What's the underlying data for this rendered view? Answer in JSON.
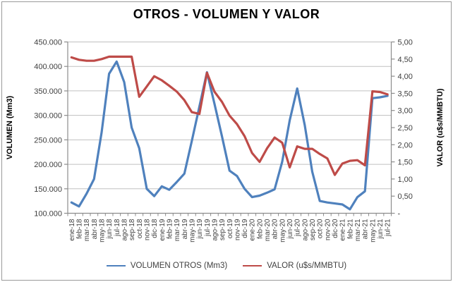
{
  "chart": {
    "title": "OTROS - VOLUMEN Y VALOR",
    "left_axis_title": "VOLUMEN (Mm3)",
    "right_axis_title": "VALOR (u$s/MMBTU)",
    "legend": [
      {
        "label": "VOLUMEN OTROS (Mm3)",
        "color": "#4F81BD"
      },
      {
        "label": "VALOR (u$s/MMBTU)",
        "color": "#BE4B48"
      }
    ]
  },
  "colors": {
    "volumen_line": "#4F81BD",
    "valor_line": "#BE4B48",
    "gridline": "#C0C0C0",
    "axis_line": "#8C8C8C",
    "tick_text": "#3F3F3F"
  },
  "chart_data": {
    "type": "line",
    "title": "OTROS - VOLUMEN Y VALOR",
    "xlabel": "",
    "ylabel_left": "VOLUMEN (Mm3)",
    "ylabel_right": "VALOR (u$s/MMBTU)",
    "grid": true,
    "legend_position": "bottom",
    "categories": [
      "ene-18",
      "feb-18",
      "mar-18",
      "abr-18",
      "may-18",
      "jun-18",
      "jul-18",
      "ago-18",
      "sep-18",
      "oct-18",
      "nov-18",
      "dic-18",
      "ene-19",
      "feb-19",
      "mar-19",
      "abr-19",
      "may-19",
      "jun-19",
      "jul-19",
      "ago-19",
      "sep-19",
      "oct-19",
      "nov-19",
      "dic-19",
      "ene-20",
      "feb-20",
      "mar-20",
      "abr-20",
      "may-20",
      "jun-20",
      "jul-20",
      "ago-20",
      "sep-20",
      "oct-20",
      "nov-20",
      "dic-20",
      "ene-21",
      "feb-21",
      "mar-21",
      "abr-21",
      "may-21",
      "jun-21",
      "jul-21"
    ],
    "series": [
      {
        "name": "VOLUMEN OTROS (Mm3)",
        "axis": "left",
        "color": "#4F81BD",
        "values": [
          122000,
          114000,
          140000,
          170000,
          265000,
          385000,
          410000,
          368000,
          275000,
          233000,
          150000,
          135000,
          155000,
          148000,
          164000,
          181000,
          248000,
          318000,
          388000,
          324000,
          257000,
          187000,
          176000,
          150000,
          133000,
          136000,
          142000,
          149000,
          205000,
          290000,
          355000,
          280000,
          185000,
          125000,
          122000,
          120000,
          118000,
          108000,
          133000,
          145000,
          335000,
          337000,
          340000
        ]
      },
      {
        "name": "VALOR (u$s/MMBTU)",
        "axis": "right",
        "color": "#BE4B48",
        "values": [
          4.55,
          4.48,
          4.45,
          4.45,
          4.5,
          4.57,
          4.57,
          4.57,
          4.57,
          3.4,
          3.7,
          4.0,
          3.88,
          3.72,
          3.55,
          3.3,
          2.95,
          2.9,
          4.1,
          3.55,
          3.25,
          2.85,
          2.6,
          2.25,
          1.76,
          1.5,
          1.9,
          2.21,
          2.06,
          1.34,
          1.95,
          1.88,
          1.88,
          1.73,
          1.6,
          1.12,
          1.45,
          1.53,
          1.55,
          1.4,
          3.56,
          3.54,
          3.47
        ]
      }
    ],
    "left_axis": {
      "min": 100000,
      "max": 450000,
      "tick_step": 50000,
      "tick_labels": [
        "100.000",
        "150.000",
        "200.000",
        "250.000",
        "300.000",
        "350.000",
        "400.000",
        "450.000"
      ]
    },
    "right_axis": {
      "min": 0,
      "max": 5,
      "tick_step": 0.5,
      "tick_labels": [
        "-",
        "0,50",
        "1,00",
        "1,50",
        "2,00",
        "2,50",
        "3,00",
        "3,50",
        "4,00",
        "4,50",
        "5,00"
      ]
    }
  }
}
